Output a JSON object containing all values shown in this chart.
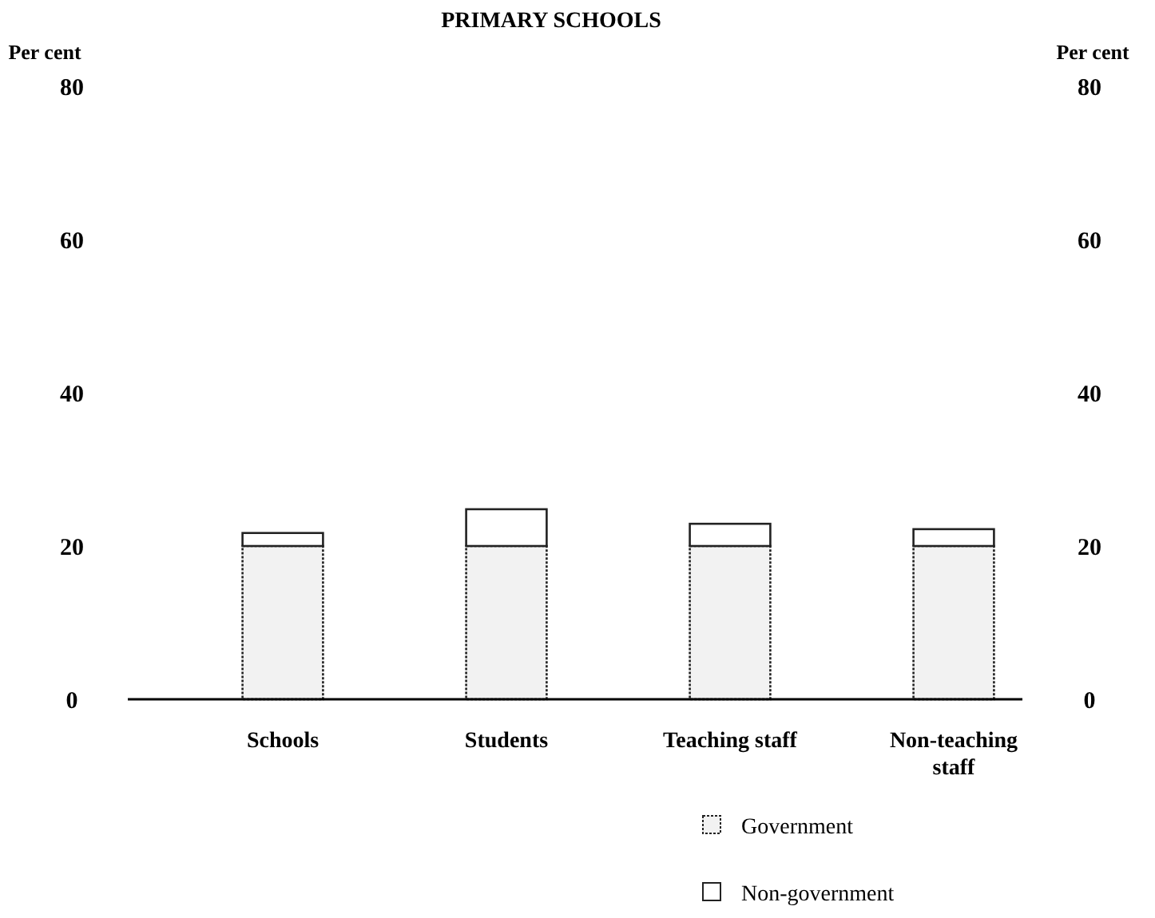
{
  "chart_data": {
    "type": "bar",
    "title": "PRIMARY SCHOOLS",
    "ylabel": "Per cent",
    "y2label": "Per cent",
    "categories": [
      "Schools",
      "Students",
      "Teaching staff",
      "Non-teaching staff"
    ],
    "stacked": true,
    "series": [
      {
        "name": "Government",
        "color": "#f2f2f2",
        "values": [
          20,
          20,
          20,
          20
        ]
      },
      {
        "name": "Non-government",
        "color": "#ffffff",
        "values": [
          1.7,
          4.8,
          2.9,
          2.2
        ]
      }
    ],
    "ylim": [
      0,
      80
    ],
    "yticks": [
      0,
      20,
      40,
      60,
      80
    ],
    "y2lim": [
      0,
      80
    ],
    "y2ticks": [
      0,
      20,
      40,
      60,
      80
    ],
    "grid": false,
    "legend": "bottom right"
  }
}
